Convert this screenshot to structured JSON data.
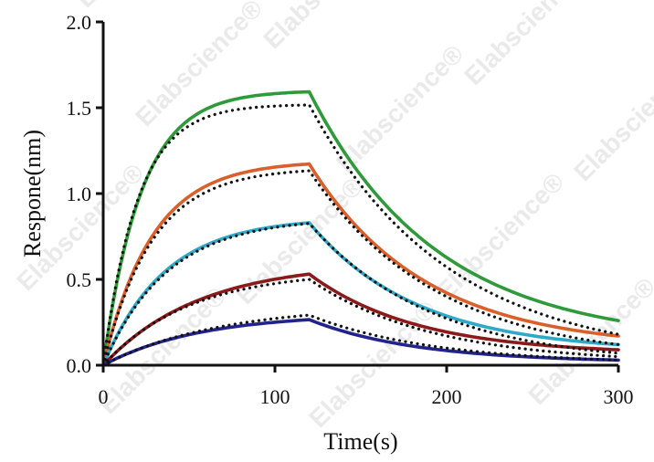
{
  "chart_data": {
    "type": "line",
    "title": "",
    "xlabel": "Time(s)",
    "ylabel": "Respone(nm)",
    "xlim": [
      0,
      300
    ],
    "ylim": [
      0,
      2.0
    ],
    "xticks": [
      0,
      100,
      200,
      300
    ],
    "yticks": [
      0.0,
      0.5,
      1.0,
      1.5,
      2.0
    ],
    "xtick_labels": [
      "0",
      "100",
      "200",
      "300"
    ],
    "ytick_labels": [
      "0.0",
      "0.5",
      "1.0",
      "1.5",
      "2.0"
    ],
    "grid": false,
    "watermark": "Elabscience®",
    "association_end": 120,
    "series": [
      {
        "color": "#2e9a3a",
        "style": "solid",
        "plateau": 1.6,
        "dissociation_end": 0.26,
        "k_on": 0.045,
        "k_off": 0.0135
      },
      {
        "color": "#d95f2b",
        "style": "solid",
        "plateau": 1.19,
        "dissociation_end": 0.17,
        "k_on": 0.035,
        "k_off": 0.015
      },
      {
        "color": "#2fa9c7",
        "style": "solid",
        "plateau": 0.86,
        "dissociation_end": 0.12,
        "k_on": 0.028,
        "k_off": 0.016
      },
      {
        "color": "#8b1a1a",
        "style": "solid",
        "plateau": 0.6,
        "dissociation_end": 0.09,
        "k_on": 0.018,
        "k_off": 0.016
      },
      {
        "color": "#23238e",
        "style": "solid",
        "plateau": 0.3,
        "dissociation_end": 0.03,
        "k_on": 0.018,
        "k_off": 0.016
      },
      {
        "color": "#111111",
        "style": "dotted",
        "plateau": 1.52,
        "dissociation_end": 0.18,
        "k_on": 0.05,
        "k_off": 0.0125
      },
      {
        "color": "#111111",
        "style": "dotted",
        "plateau": 1.15,
        "dissociation_end": 0.12,
        "k_on": 0.035,
        "k_off": 0.0135
      },
      {
        "color": "#111111",
        "style": "dotted",
        "plateau": 0.86,
        "dissociation_end": 0.07,
        "k_on": 0.027,
        "k_off": 0.014
      },
      {
        "color": "#111111",
        "style": "dotted",
        "plateau": 0.55,
        "dissociation_end": 0.05,
        "k_on": 0.02,
        "k_off": 0.014
      },
      {
        "color": "#111111",
        "style": "dotted",
        "plateau": 0.35,
        "dissociation_end": 0.03,
        "k_on": 0.015,
        "k_off": 0.014
      }
    ]
  }
}
